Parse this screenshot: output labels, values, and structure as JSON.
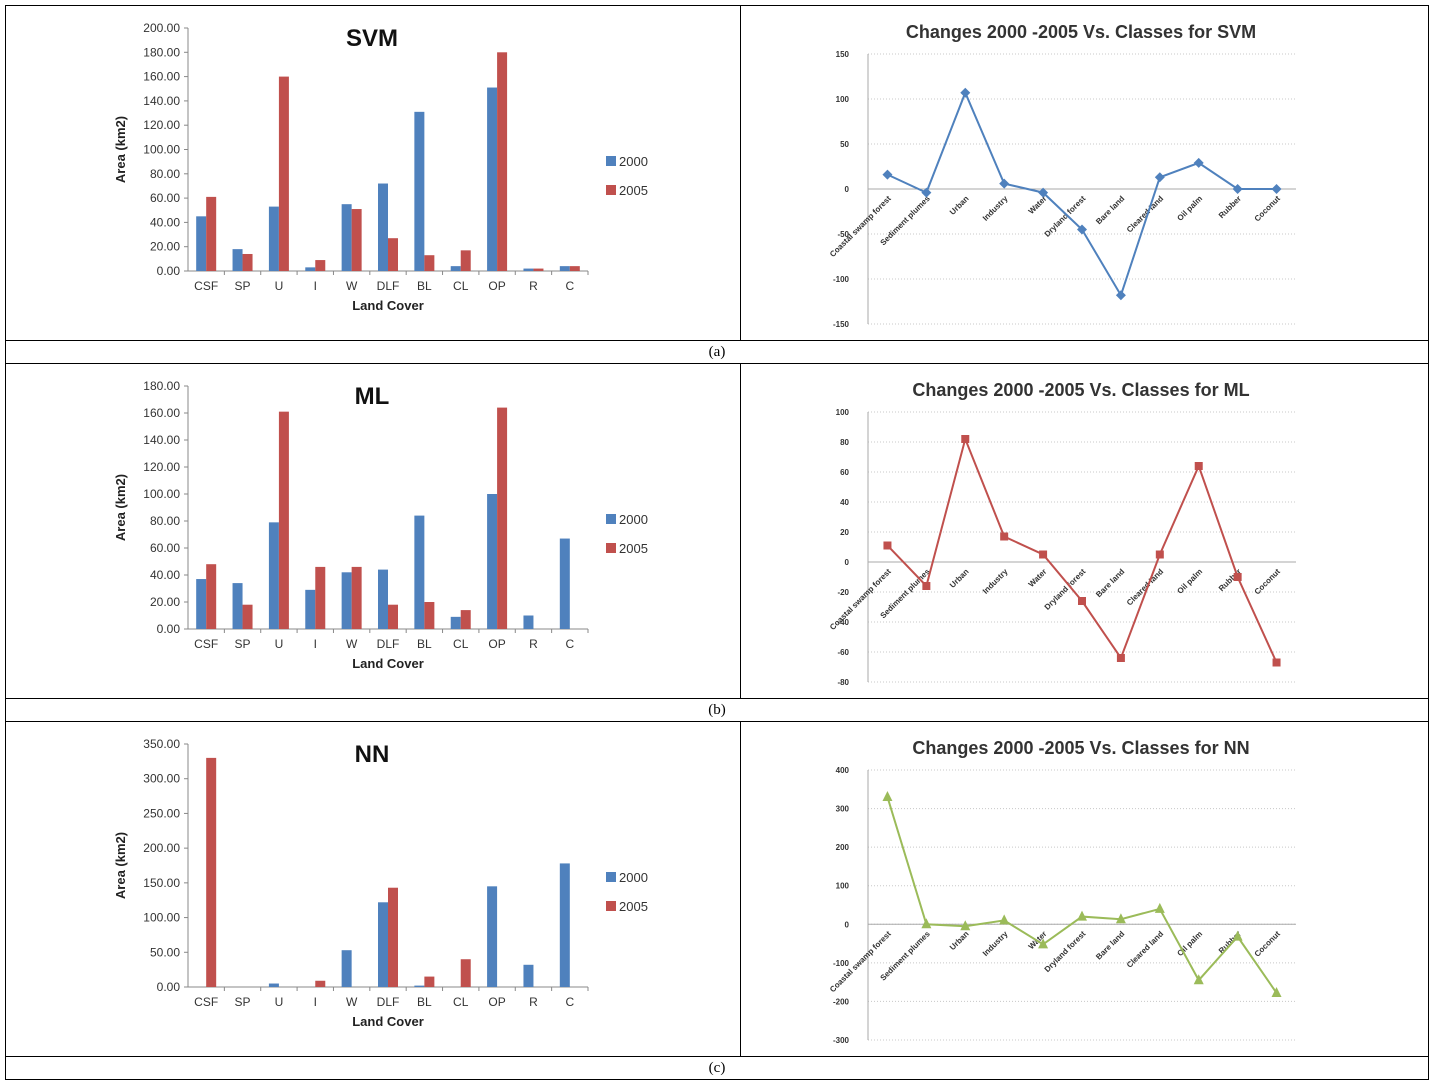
{
  "colors": {
    "s2000": "#4F81BD",
    "s2005": "#C0504D",
    "svm_line": "#4F81BD",
    "ml_line": "#C0504D",
    "nn_line": "#9BBB59"
  },
  "captions": [
    "(a)",
    "(b)",
    "(c)"
  ],
  "chart_data": [
    {
      "type": "bar",
      "title": "SVM",
      "xlabel": "Land Cover",
      "ylabel": "Area (km2)",
      "ylim": [
        0,
        200
      ],
      "yticks": [
        "0.00",
        "20.00",
        "40.00",
        "60.00",
        "80.00",
        "100.00",
        "120.00",
        "140.00",
        "160.00",
        "180.00",
        "200.00"
      ],
      "categories": [
        "CSF",
        "SP",
        "U",
        "I",
        "W",
        "DLF",
        "BL",
        "CL",
        "OP",
        "R",
        "C"
      ],
      "legend_position": "right",
      "series": [
        {
          "name": "2000",
          "values": [
            45,
            18,
            53,
            3,
            55,
            72,
            131,
            4,
            151,
            2,
            4
          ]
        },
        {
          "name": "2005",
          "values": [
            61,
            14,
            160,
            9,
            51,
            27,
            13,
            17,
            180,
            2,
            4
          ]
        }
      ]
    },
    {
      "type": "line",
      "title": "Changes 2000 -2005 Vs. Classes for SVM",
      "ylim": [
        -150,
        150
      ],
      "yticks": [
        "-150",
        "-100",
        "-50",
        "0",
        "50",
        "100",
        "150"
      ],
      "categories": [
        "Coastal swamp forest",
        "Sediment plumes",
        "Urban",
        "Industry",
        "Water",
        "Dryland forest",
        "Bare land",
        "Cleared land",
        "Oil palm",
        "Rubber",
        "Coconut"
      ],
      "marker": "diamond",
      "series": [
        {
          "values": [
            16,
            -4,
            107,
            6,
            -4,
            -45,
            -118,
            13,
            29,
            0,
            0
          ]
        }
      ]
    },
    {
      "type": "bar",
      "title": "ML",
      "xlabel": "Land Cover",
      "ylabel": "Area (km2)",
      "ylim": [
        0,
        180
      ],
      "yticks": [
        "0.00",
        "20.00",
        "40.00",
        "60.00",
        "80.00",
        "100.00",
        "120.00",
        "140.00",
        "160.00",
        "180.00"
      ],
      "categories": [
        "CSF",
        "SP",
        "U",
        "I",
        "W",
        "DLF",
        "BL",
        "CL",
        "OP",
        "R",
        "C"
      ],
      "legend_position": "right",
      "series": [
        {
          "name": "2000",
          "values": [
            37,
            34,
            79,
            29,
            42,
            44,
            84,
            9,
            100,
            10,
            67
          ]
        },
        {
          "name": "2005",
          "values": [
            48,
            18,
            161,
            46,
            46,
            18,
            20,
            14,
            164,
            0,
            0
          ]
        }
      ]
    },
    {
      "type": "line",
      "title": "Changes 2000 -2005 Vs. Classes for ML",
      "ylim": [
        -80,
        100
      ],
      "yticks": [
        "-80",
        "-60",
        "-40",
        "-20",
        "0",
        "20",
        "40",
        "60",
        "80",
        "100"
      ],
      "categories": [
        "Coastal swamp forest",
        "Sediment plumes",
        "Urban",
        "Industry",
        "Water",
        "Dryland forest",
        "Bare land",
        "Cleared land",
        "Oil palm",
        "Rubber",
        "Coconut"
      ],
      "marker": "square",
      "series": [
        {
          "values": [
            11,
            -16,
            82,
            17,
            5,
            -26,
            -64,
            5,
            64,
            -10,
            -67
          ]
        }
      ]
    },
    {
      "type": "bar",
      "title": "NN",
      "xlabel": "Land Cover",
      "ylabel": "Area (km2)",
      "ylim": [
        0,
        350
      ],
      "yticks": [
        "0.00",
        "50.00",
        "100.00",
        "150.00",
        "200.00",
        "250.00",
        "300.00",
        "350.00"
      ],
      "categories": [
        "CSF",
        "SP",
        "U",
        "I",
        "W",
        "DLF",
        "BL",
        "CL",
        "OP",
        "R",
        "C"
      ],
      "legend_position": "right",
      "series": [
        {
          "name": "2000",
          "values": [
            0,
            0,
            5,
            0,
            53,
            122,
            2,
            0,
            145,
            32,
            178
          ]
        },
        {
          "name": "2005",
          "values": [
            330,
            0,
            0,
            9,
            0,
            143,
            15,
            40,
            0,
            0,
            0
          ]
        }
      ]
    },
    {
      "type": "line",
      "title": "Changes 2000 -2005 Vs. Classes for NN",
      "ylim": [
        -300,
        400
      ],
      "yticks": [
        "-300",
        "-200",
        "-100",
        "0",
        "100",
        "200",
        "300",
        "400"
      ],
      "categories": [
        "Coastal swamp forest",
        "Sediment plumes",
        "Urban",
        "Industry",
        "Water",
        "Dryland forest",
        "Bare land",
        "Cleared land",
        "Oil palm",
        "Rubber",
        "Coconut"
      ],
      "marker": "triangle",
      "series": [
        {
          "values": [
            330,
            0,
            -5,
            10,
            -52,
            20,
            13,
            40,
            -145,
            -32,
            -178
          ]
        }
      ]
    }
  ]
}
